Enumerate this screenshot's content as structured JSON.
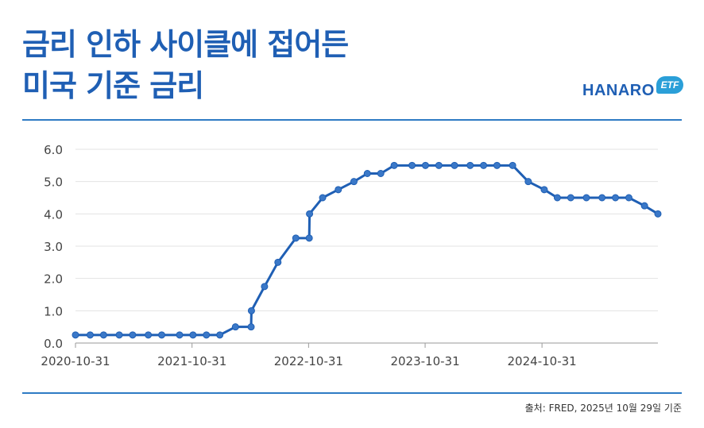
{
  "header": {
    "title_line1": "금리 인하 사이클에 접어든",
    "title_line2": "미국 기준 금리"
  },
  "logo": {
    "text_main": "HANARO",
    "badge": "ETF",
    "colors": {
      "primary": "#1f5fb4",
      "accent": "#f2a71b",
      "badge": "#2a9fd8"
    }
  },
  "footer": {
    "source": "출처: FRED, 2025년 10월 29일 기준"
  },
  "chart_data": {
    "type": "line",
    "ylim": [
      0,
      6
    ],
    "yticks": [
      "0.0",
      "1.0",
      "2.0",
      "3.0",
      "4.0",
      "5.0",
      "6.0"
    ],
    "xticks": [
      "2020-10-31",
      "2021-10-31",
      "2022-10-31",
      "2023-10-31",
      "2024-10-31"
    ],
    "grid": true,
    "line_color": "#1f5fb4",
    "series": [
      {
        "points": [
          [
            "2020-10-31",
            0.25
          ],
          [
            "2020-12-16",
            0.25
          ],
          [
            "2021-01-27",
            0.25
          ],
          [
            "2021-03-17",
            0.25
          ],
          [
            "2021-04-28",
            0.25
          ],
          [
            "2021-06-16",
            0.25
          ],
          [
            "2021-07-28",
            0.25
          ],
          [
            "2021-09-22",
            0.25
          ],
          [
            "2021-11-03",
            0.25
          ],
          [
            "2021-12-15",
            0.25
          ],
          [
            "2022-01-26",
            0.25
          ],
          [
            "2022-03-16",
            0.5
          ],
          [
            "2022-05-04",
            0.5
          ],
          [
            "2022-05-05",
            1.0
          ],
          [
            "2022-06-15",
            1.75
          ],
          [
            "2022-07-27",
            2.5
          ],
          [
            "2022-09-21",
            3.25
          ],
          [
            "2022-11-02",
            3.25
          ],
          [
            "2022-11-03",
            4.0
          ],
          [
            "2022-12-14",
            4.5
          ],
          [
            "2023-02-01",
            4.75
          ],
          [
            "2023-03-22",
            5.0
          ],
          [
            "2023-05-03",
            5.25
          ],
          [
            "2023-06-14",
            5.25
          ],
          [
            "2023-07-26",
            5.5
          ],
          [
            "2023-09-20",
            5.5
          ],
          [
            "2023-11-01",
            5.5
          ],
          [
            "2023-12-13",
            5.5
          ],
          [
            "2024-01-31",
            5.5
          ],
          [
            "2024-03-20",
            5.5
          ],
          [
            "2024-05-01",
            5.5
          ],
          [
            "2024-06-12",
            5.5
          ],
          [
            "2024-07-31",
            5.5
          ],
          [
            "2024-09-18",
            5.0
          ],
          [
            "2024-11-07",
            4.75
          ],
          [
            "2024-12-18",
            4.5
          ],
          [
            "2025-01-29",
            4.5
          ],
          [
            "2025-03-19",
            4.5
          ],
          [
            "2025-05-07",
            4.5
          ],
          [
            "2025-06-18",
            4.5
          ],
          [
            "2025-07-30",
            4.5
          ],
          [
            "2025-09-17",
            4.25
          ],
          [
            "2025-10-29",
            4.0
          ]
        ]
      }
    ]
  }
}
